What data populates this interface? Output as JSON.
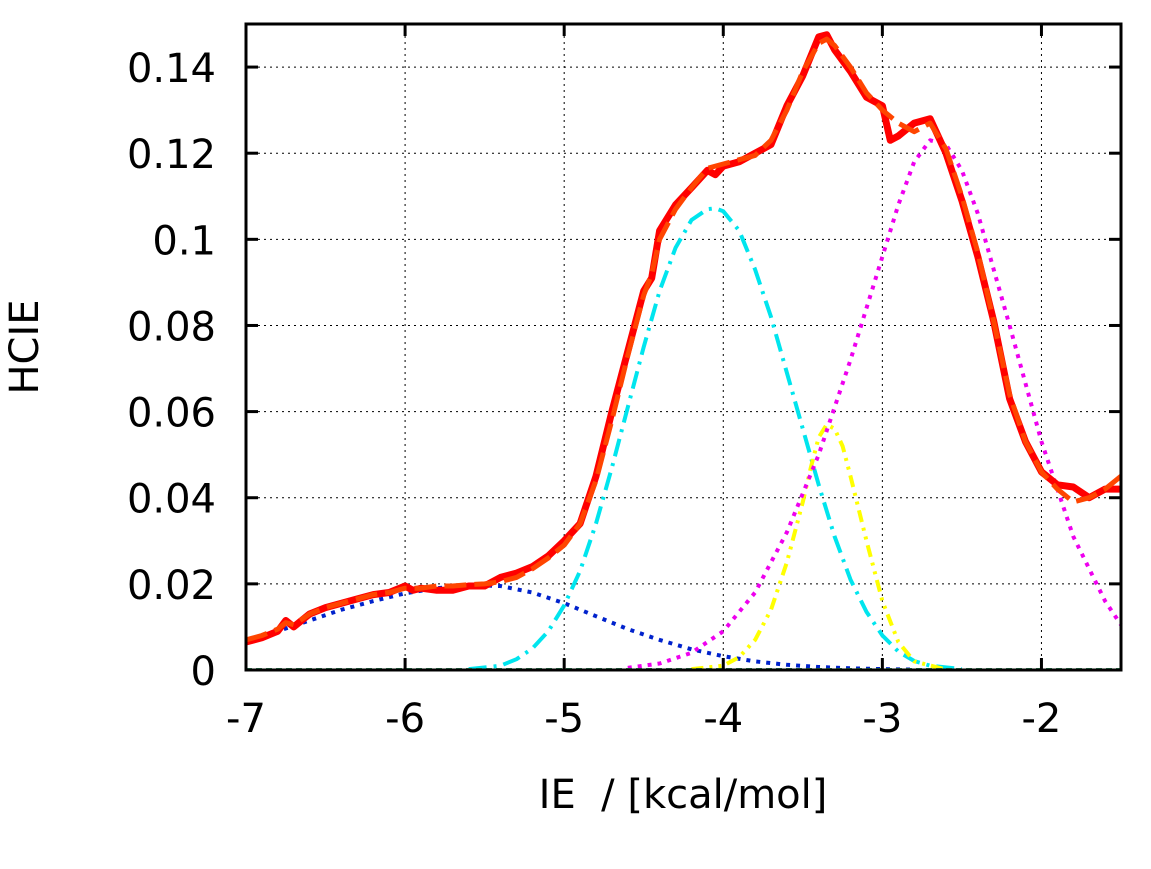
{
  "chart_data": {
    "type": "line",
    "title": "",
    "xlabel": "IE  / [kcal/mol]",
    "ylabel": "HCIE",
    "xlim": [
      -7,
      -1.5
    ],
    "ylim": [
      0,
      0.15
    ],
    "xticks": [
      -7,
      -6,
      -5,
      -4,
      -3,
      -2
    ],
    "xtick_labels": [
      "-7",
      "-6",
      "-5",
      "-4",
      "-3",
      "-2"
    ],
    "yticks": [
      0,
      0.02,
      0.04,
      0.06,
      0.08,
      0.1,
      0.12,
      0.14
    ],
    "ytick_labels": [
      "0",
      "0.02",
      "0.04",
      "0.06",
      "0.08",
      "0.1",
      "0.12",
      "0.14"
    ],
    "grid": true,
    "legend": false,
    "series": [
      {
        "style": "solid",
        "color": "#ff0000",
        "x": [
          -7.0,
          -6.9,
          -6.8,
          -6.75,
          -6.7,
          -6.6,
          -6.5,
          -6.4,
          -6.3,
          -6.2,
          -6.1,
          -6.0,
          -5.95,
          -5.9,
          -5.8,
          -5.7,
          -5.6,
          -5.5,
          -5.4,
          -5.3,
          -5.2,
          -5.1,
          -5.0,
          -4.9,
          -4.8,
          -4.7,
          -4.6,
          -4.5,
          -4.45,
          -4.4,
          -4.3,
          -4.2,
          -4.1,
          -4.05,
          -4.0,
          -3.9,
          -3.8,
          -3.7,
          -3.6,
          -3.5,
          -3.4,
          -3.35,
          -3.3,
          -3.2,
          -3.1,
          -3.0,
          -2.95,
          -2.9,
          -2.8,
          -2.7,
          -2.6,
          -2.5,
          -2.4,
          -2.3,
          -2.2,
          -2.1,
          -2.0,
          -1.9,
          -1.8,
          -1.7,
          -1.6,
          -1.5
        ],
        "y": [
          0.0065,
          0.0075,
          0.009,
          0.0115,
          0.01,
          0.013,
          0.0145,
          0.0155,
          0.0165,
          0.0175,
          0.018,
          0.0195,
          0.0185,
          0.019,
          0.0185,
          0.0185,
          0.0195,
          0.0195,
          0.0215,
          0.0225,
          0.024,
          0.0265,
          0.03,
          0.034,
          0.045,
          0.06,
          0.074,
          0.088,
          0.091,
          0.102,
          0.108,
          0.112,
          0.116,
          0.115,
          0.117,
          0.118,
          0.12,
          0.122,
          0.131,
          0.138,
          0.147,
          0.1475,
          0.144,
          0.139,
          0.133,
          0.131,
          0.123,
          0.124,
          0.127,
          0.128,
          0.12,
          0.109,
          0.096,
          0.081,
          0.063,
          0.053,
          0.046,
          0.043,
          0.0425,
          0.04,
          0.042,
          0.042
        ]
      },
      {
        "style": "dashed",
        "color": "#ff4500",
        "x": [
          -7.0,
          -6.9,
          -6.8,
          -6.75,
          -6.7,
          -6.6,
          -6.5,
          -6.4,
          -6.3,
          -6.2,
          -6.1,
          -6.0,
          -5.9,
          -5.8,
          -5.7,
          -5.6,
          -5.5,
          -5.4,
          -5.3,
          -5.2,
          -5.1,
          -5.0,
          -4.9,
          -4.8,
          -4.7,
          -4.6,
          -4.5,
          -4.45,
          -4.4,
          -4.3,
          -4.2,
          -4.1,
          -4.0,
          -3.9,
          -3.8,
          -3.7,
          -3.6,
          -3.5,
          -3.4,
          -3.35,
          -3.3,
          -3.2,
          -3.1,
          -3.0,
          -2.9,
          -2.8,
          -2.7,
          -2.6,
          -2.5,
          -2.4,
          -2.3,
          -2.2,
          -2.1,
          -2.0,
          -1.9,
          -1.8,
          -1.7,
          -1.6,
          -1.5
        ],
        "y": [
          0.007,
          0.008,
          0.0095,
          0.011,
          0.0105,
          0.013,
          0.0145,
          0.0155,
          0.0165,
          0.0175,
          0.018,
          0.019,
          0.019,
          0.0195,
          0.0195,
          0.0198,
          0.02,
          0.0205,
          0.0215,
          0.0235,
          0.026,
          0.029,
          0.034,
          0.044,
          0.058,
          0.073,
          0.087,
          0.092,
          0.1,
          0.107,
          0.112,
          0.1165,
          0.1175,
          0.1185,
          0.1195,
          0.123,
          0.13,
          0.139,
          0.1455,
          0.1465,
          0.145,
          0.14,
          0.134,
          0.13,
          0.127,
          0.125,
          0.127,
          0.121,
          0.11,
          0.097,
          0.081,
          0.064,
          0.053,
          0.046,
          0.042,
          0.039,
          0.04,
          0.042,
          0.045
        ]
      },
      {
        "style": "dotted",
        "color": "#0022cc",
        "x": [
          -7.0,
          -6.8,
          -6.6,
          -6.4,
          -6.2,
          -6.0,
          -5.8,
          -5.6,
          -5.4,
          -5.2,
          -5.0,
          -4.8,
          -4.6,
          -4.4,
          -4.2,
          -4.0,
          -3.8,
          -3.6,
          -3.4,
          -3.2,
          -3.0,
          -2.8
        ],
        "y": [
          0.0065,
          0.009,
          0.0115,
          0.014,
          0.016,
          0.0178,
          0.019,
          0.0197,
          0.0195,
          0.018,
          0.0155,
          0.0125,
          0.0095,
          0.007,
          0.0048,
          0.0032,
          0.002,
          0.0012,
          0.0007,
          0.0004,
          0.0002,
          0.0001
        ]
      },
      {
        "style": "dash-dot",
        "color": "#00e5ee",
        "x": [
          -5.6,
          -5.4,
          -5.3,
          -5.2,
          -5.1,
          -5.0,
          -4.9,
          -4.8,
          -4.7,
          -4.6,
          -4.5,
          -4.4,
          -4.3,
          -4.2,
          -4.1,
          -4.05,
          -4.0,
          -3.9,
          -3.8,
          -3.7,
          -3.6,
          -3.5,
          -3.4,
          -3.3,
          -3.2,
          -3.1,
          -3.0,
          -2.9,
          -2.8,
          -2.7,
          -2.5
        ],
        "y": [
          0.0002,
          0.001,
          0.0025,
          0.005,
          0.009,
          0.015,
          0.023,
          0.034,
          0.047,
          0.061,
          0.075,
          0.088,
          0.098,
          0.1045,
          0.107,
          0.1072,
          0.1065,
          0.102,
          0.093,
          0.082,
          0.069,
          0.056,
          0.043,
          0.031,
          0.021,
          0.0135,
          0.008,
          0.0043,
          0.0021,
          0.001,
          0.0002
        ]
      },
      {
        "style": "dash-dot-dot",
        "color": "#ffff00",
        "x": [
          -4.2,
          -4.0,
          -3.9,
          -3.8,
          -3.7,
          -3.6,
          -3.5,
          -3.45,
          -3.4,
          -3.35,
          -3.3,
          -3.25,
          -3.2,
          -3.1,
          -3.0,
          -2.9,
          -2.8,
          -2.6
        ],
        "y": [
          0.0002,
          0.001,
          0.003,
          0.007,
          0.014,
          0.025,
          0.039,
          0.047,
          0.054,
          0.057,
          0.056,
          0.052,
          0.045,
          0.03,
          0.016,
          0.0065,
          0.002,
          0.0001
        ]
      },
      {
        "style": "dotted",
        "color": "#ee00ee",
        "x": [
          -4.6,
          -4.4,
          -4.2,
          -4.0,
          -3.8,
          -3.6,
          -3.4,
          -3.2,
          -3.0,
          -2.9,
          -2.8,
          -2.7,
          -2.6,
          -2.5,
          -2.4,
          -2.2,
          -2.0,
          -1.8,
          -1.6,
          -1.5
        ],
        "y": [
          0.0005,
          0.0015,
          0.004,
          0.009,
          0.018,
          0.032,
          0.05,
          0.072,
          0.096,
          0.108,
          0.118,
          0.123,
          0.122,
          0.116,
          0.106,
          0.08,
          0.053,
          0.031,
          0.016,
          0.0105
        ]
      }
    ]
  }
}
